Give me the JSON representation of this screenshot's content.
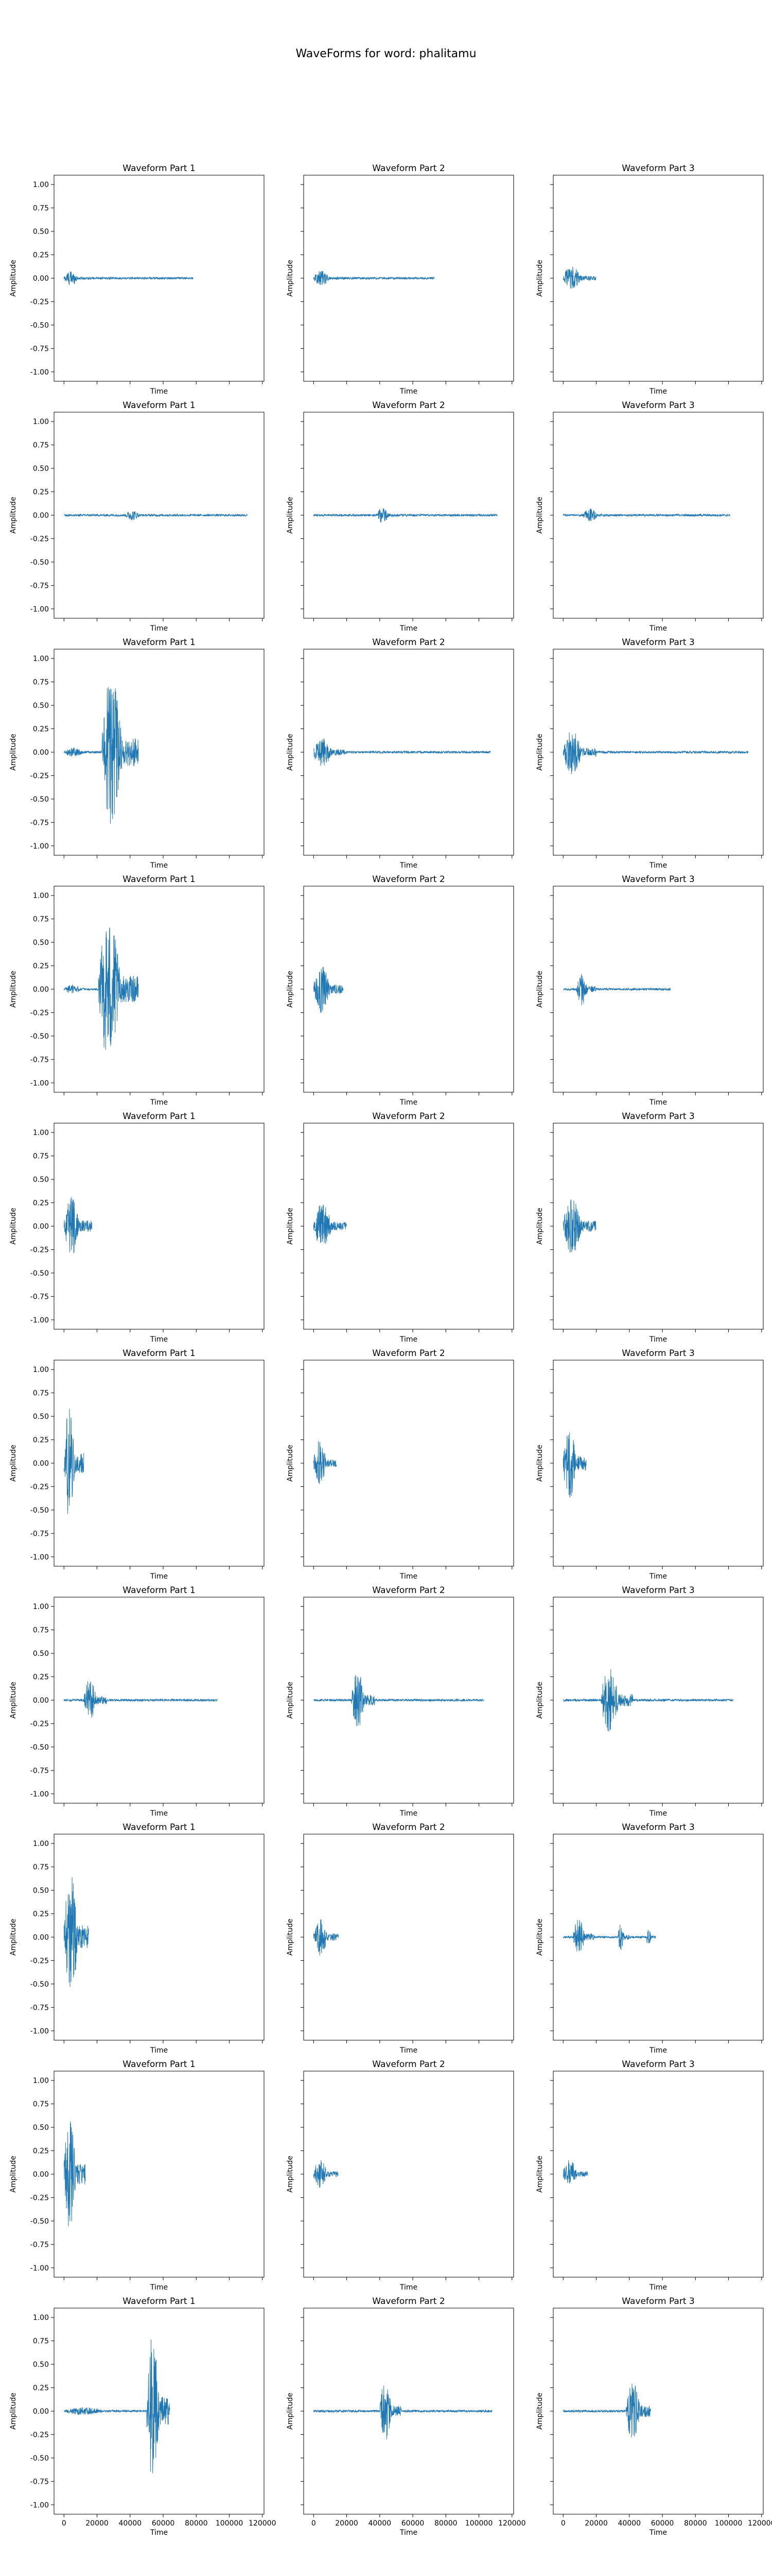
{
  "suptitle": "WaveForms for word: phalitamu",
  "colors": {
    "waveform": "#1f77b4",
    "axes": "#000000",
    "background": "#ffffff"
  },
  "chart_data": {
    "type": "line",
    "layout_grid": {
      "rows": 10,
      "cols": 3,
      "sharex": true,
      "sharey": true
    },
    "xlabel": "Time",
    "ylabel": "Amplitude",
    "xlim": [
      -6000,
      121000
    ],
    "ylim": [
      -1.1,
      1.1
    ],
    "xticks": [
      0,
      20000,
      40000,
      60000,
      80000,
      100000,
      120000
    ],
    "xtick_labels": [
      "0",
      "20000",
      "40000",
      "60000",
      "80000",
      "100000",
      "120000"
    ],
    "yticks": [
      1.0,
      0.75,
      0.5,
      0.25,
      0.0,
      -0.25,
      -0.5,
      -0.75,
      -1.0
    ],
    "ytick_labels": [
      "1.00",
      "0.75",
      "0.50",
      "0.25",
      "0.00",
      "-0.25",
      "-0.50",
      "-0.75",
      "-1.00"
    ],
    "grid": false,
    "panel_titles": [
      "Waveform Part 1",
      "Waveform Part 2",
      "Waveform Part 3"
    ],
    "panels": [
      {
        "row": 1,
        "col": 1,
        "title": "Waveform Part 1",
        "length": 78000,
        "bursts": [
          {
            "start": 0,
            "end": 15000,
            "amp": 0.1
          }
        ]
      },
      {
        "row": 1,
        "col": 2,
        "title": "Waveform Part 2",
        "length": 73000,
        "bursts": [
          {
            "start": 0,
            "end": 18000,
            "amp": 0.1
          }
        ]
      },
      {
        "row": 1,
        "col": 3,
        "title": "Waveform Part 3",
        "length": 20000,
        "bursts": [
          {
            "start": 0,
            "end": 20000,
            "amp": 0.16
          }
        ]
      },
      {
        "row": 2,
        "col": 1,
        "title": "Waveform Part 1",
        "length": 111000,
        "bursts": [
          {
            "start": 37000,
            "end": 53000,
            "amp": 0.07
          }
        ]
      },
      {
        "row": 2,
        "col": 2,
        "title": "Waveform Part 2",
        "length": 111000,
        "bursts": [
          {
            "start": 38000,
            "end": 52000,
            "amp": 0.1
          }
        ]
      },
      {
        "row": 2,
        "col": 3,
        "title": "Waveform Part 3",
        "length": 101000,
        "bursts": [
          {
            "start": 12000,
            "end": 28000,
            "amp": 0.09
          }
        ]
      },
      {
        "row": 3,
        "col": 1,
        "title": "Waveform Part 1",
        "length": 45000,
        "bursts": [
          {
            "start": 0,
            "end": 22000,
            "amp": 0.06
          },
          {
            "start": 23000,
            "end": 45000,
            "amp": 1.0
          }
        ]
      },
      {
        "row": 3,
        "col": 2,
        "title": "Waveform Part 2",
        "length": 107000,
        "bursts": [
          {
            "start": 0,
            "end": 20000,
            "amp": 0.2
          }
        ]
      },
      {
        "row": 3,
        "col": 3,
        "title": "Waveform Part 3",
        "length": 112000,
        "bursts": [
          {
            "start": 0,
            "end": 20000,
            "amp": 0.3
          }
        ]
      },
      {
        "row": 4,
        "col": 1,
        "title": "Waveform Part 1",
        "length": 45000,
        "bursts": [
          {
            "start": 0,
            "end": 20000,
            "amp": 0.06
          },
          {
            "start": 21000,
            "end": 45000,
            "amp": 0.95
          }
        ]
      },
      {
        "row": 4,
        "col": 2,
        "title": "Waveform Part 2",
        "length": 18000,
        "bursts": [
          {
            "start": 0,
            "end": 18000,
            "amp": 0.32
          }
        ]
      },
      {
        "row": 4,
        "col": 3,
        "title": "Waveform Part 3",
        "length": 65000,
        "bursts": [
          {
            "start": 8000,
            "end": 20000,
            "amp": 0.22
          }
        ]
      },
      {
        "row": 5,
        "col": 1,
        "title": "Waveform Part 1",
        "length": 17000,
        "bursts": [
          {
            "start": 0,
            "end": 17000,
            "amp": 0.4
          }
        ]
      },
      {
        "row": 5,
        "col": 2,
        "title": "Waveform Part 2",
        "length": 20000,
        "bursts": [
          {
            "start": 0,
            "end": 20000,
            "amp": 0.3
          }
        ]
      },
      {
        "row": 5,
        "col": 3,
        "title": "Waveform Part 3",
        "length": 20000,
        "bursts": [
          {
            "start": 0,
            "end": 20000,
            "amp": 0.38
          }
        ]
      },
      {
        "row": 6,
        "col": 1,
        "title": "Waveform Part 1",
        "length": 12000,
        "bursts": [
          {
            "start": 0,
            "end": 12000,
            "amp": 0.72
          }
        ]
      },
      {
        "row": 6,
        "col": 2,
        "title": "Waveform Part 2",
        "length": 14000,
        "bursts": [
          {
            "start": 0,
            "end": 14000,
            "amp": 0.3
          }
        ]
      },
      {
        "row": 6,
        "col": 3,
        "title": "Waveform Part 3",
        "length": 14000,
        "bursts": [
          {
            "start": 0,
            "end": 14000,
            "amp": 0.52
          }
        ]
      },
      {
        "row": 7,
        "col": 1,
        "title": "Waveform Part 1",
        "length": 93000,
        "bursts": [
          {
            "start": 12000,
            "end": 26000,
            "amp": 0.28
          }
        ]
      },
      {
        "row": 7,
        "col": 2,
        "title": "Waveform Part 2",
        "length": 103000,
        "bursts": [
          {
            "start": 23000,
            "end": 37000,
            "amp": 0.38
          }
        ]
      },
      {
        "row": 7,
        "col": 3,
        "title": "Waveform Part 3",
        "length": 103000,
        "bursts": [
          {
            "start": 23000,
            "end": 42000,
            "amp": 0.45
          }
        ]
      },
      {
        "row": 8,
        "col": 1,
        "title": "Waveform Part 1",
        "length": 15000,
        "bursts": [
          {
            "start": 0,
            "end": 15000,
            "amp": 0.85
          }
        ]
      },
      {
        "row": 8,
        "col": 2,
        "title": "Waveform Part 2",
        "length": 15000,
        "bursts": [
          {
            "start": 0,
            "end": 15000,
            "amp": 0.25
          }
        ]
      },
      {
        "row": 8,
        "col": 3,
        "title": "Waveform Part 3",
        "length": 56000,
        "bursts": [
          {
            "start": 6000,
            "end": 19000,
            "amp": 0.25
          },
          {
            "start": 33000,
            "end": 40000,
            "amp": 0.18
          },
          {
            "start": 50000,
            "end": 56000,
            "amp": 0.1
          }
        ]
      },
      {
        "row": 9,
        "col": 1,
        "title": "Waveform Part 1",
        "length": 13000,
        "bursts": [
          {
            "start": 0,
            "end": 13000,
            "amp": 0.75
          }
        ]
      },
      {
        "row": 9,
        "col": 2,
        "title": "Waveform Part 2",
        "length": 15000,
        "bursts": [
          {
            "start": 0,
            "end": 15000,
            "amp": 0.2
          }
        ]
      },
      {
        "row": 9,
        "col": 3,
        "title": "Waveform Part 3",
        "length": 15000,
        "bursts": [
          {
            "start": 0,
            "end": 15000,
            "amp": 0.2
          }
        ]
      },
      {
        "row": 10,
        "col": 1,
        "title": "Waveform Part 1",
        "length": 64000,
        "bursts": [
          {
            "start": 0,
            "end": 45000,
            "amp": 0.05
          },
          {
            "start": 50000,
            "end": 64000,
            "amp": 1.0
          }
        ]
      },
      {
        "row": 10,
        "col": 2,
        "title": "Waveform Part 2",
        "length": 108000,
        "bursts": [
          {
            "start": 40000,
            "end": 53000,
            "amp": 0.4
          }
        ]
      },
      {
        "row": 10,
        "col": 3,
        "title": "Waveform Part 3",
        "length": 53000,
        "bursts": [
          {
            "start": 38000,
            "end": 53000,
            "amp": 0.42
          }
        ]
      }
    ]
  }
}
